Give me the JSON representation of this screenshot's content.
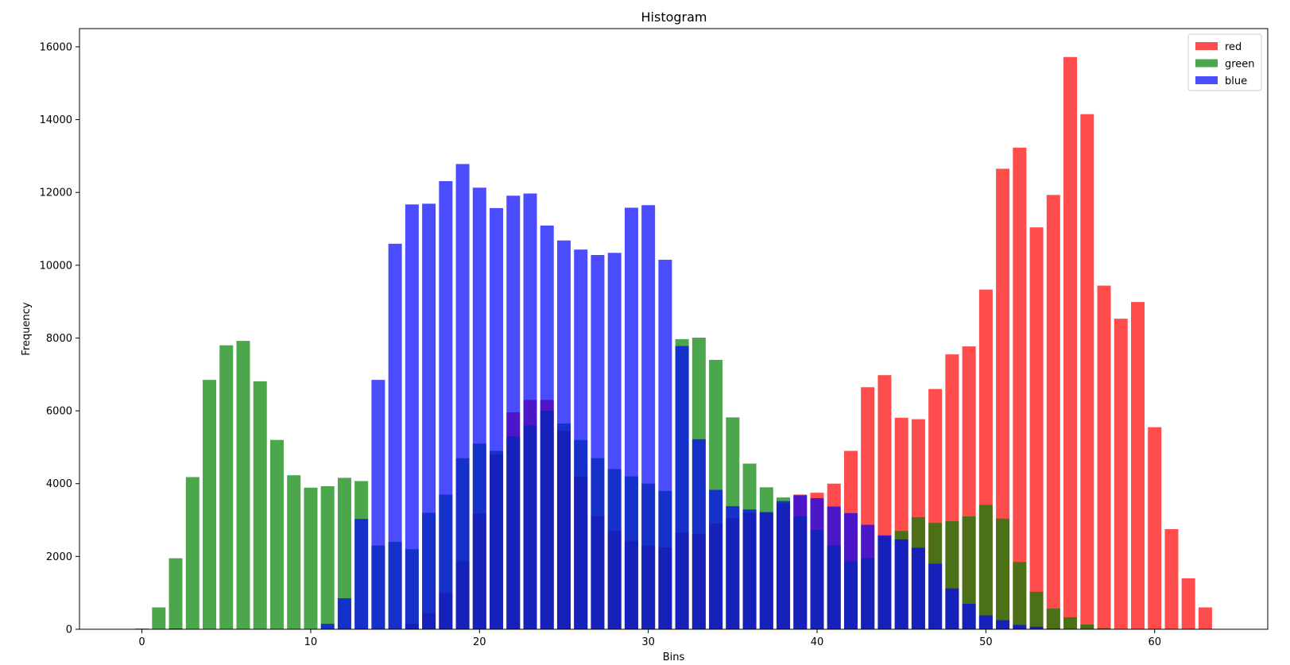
{
  "chart_data": {
    "type": "bar",
    "title": "Histogram",
    "xlabel": "Bins",
    "ylabel": "Frequency",
    "xlim": [
      -3.7,
      66.7
    ],
    "ylim": [
      0,
      16500
    ],
    "xticks": [
      0,
      10,
      20,
      30,
      40,
      50,
      60
    ],
    "yticks": [
      0,
      2000,
      4000,
      6000,
      8000,
      10000,
      12000,
      14000,
      16000
    ],
    "grid": false,
    "legend": "top-right",
    "bar_alpha": 0.7,
    "x": [
      0,
      1,
      2,
      3,
      4,
      5,
      6,
      7,
      8,
      9,
      10,
      11,
      12,
      13,
      14,
      15,
      16,
      17,
      18,
      19,
      20,
      21,
      22,
      23,
      24,
      25,
      26,
      27,
      28,
      29,
      30,
      31,
      32,
      33,
      34,
      35,
      36,
      37,
      38,
      39,
      40,
      41,
      42,
      43,
      44,
      45,
      46,
      47,
      48,
      49,
      50,
      51,
      52,
      53,
      54,
      55,
      56,
      57,
      58,
      59,
      60,
      61,
      62,
      63
    ],
    "series": [
      {
        "name": "red",
        "color": "#ff0000",
        "values": [
          0,
          0,
          0,
          0,
          0,
          0,
          0,
          0,
          0,
          0,
          0,
          0,
          0,
          0,
          0,
          0,
          150,
          450,
          1000,
          1870,
          3180,
          4800,
          5960,
          6300,
          6300,
          5450,
          4200,
          3100,
          2700,
          2430,
          2300,
          2250,
          2650,
          2620,
          2900,
          3050,
          3200,
          3200,
          3450,
          3700,
          3750,
          4000,
          4900,
          6650,
          6980,
          5810,
          5770,
          6600,
          7550,
          7770,
          9330,
          12650,
          13230,
          11040,
          11930,
          15720,
          14150,
          9440,
          8530,
          8990,
          5550,
          2750,
          1400,
          600
        ]
      },
      {
        "name": "green",
        "color": "#008000",
        "values": [
          20,
          600,
          1950,
          4180,
          6850,
          7800,
          7920,
          6810,
          5200,
          4230,
          3890,
          3930,
          4160,
          4070,
          2300,
          2400,
          2200,
          3200,
          3700,
          4700,
          5100,
          4900,
          5300,
          5600,
          6000,
          5650,
          5200,
          4700,
          4400,
          4200,
          4000,
          3800,
          7970,
          8010,
          7400,
          5820,
          4550,
          3900,
          3620,
          3100,
          2730,
          2300,
          1870,
          1950,
          2550,
          2700,
          3080,
          2920,
          2970,
          3100,
          3420,
          3040,
          1850,
          1030,
          570,
          330,
          130,
          30,
          0,
          0,
          0,
          0,
          0,
          0
        ]
      },
      {
        "name": "blue",
        "color": "#0000ff",
        "values": [
          0,
          0,
          20,
          0,
          0,
          0,
          0,
          0,
          0,
          0,
          0,
          150,
          850,
          3030,
          6850,
          10590,
          11670,
          11690,
          12310,
          12780,
          12130,
          11570,
          11910,
          11970,
          11090,
          10680,
          10430,
          10280,
          10340,
          11580,
          11650,
          10150,
          7780,
          5220,
          3830,
          3380,
          3290,
          3220,
          3520,
          3680,
          3600,
          3370,
          3190,
          2870,
          2580,
          2470,
          2240,
          1800,
          1120,
          700,
          380,
          250,
          120,
          70,
          20,
          10,
          0,
          0,
          0,
          0,
          0,
          0,
          0,
          0
        ]
      }
    ]
  }
}
